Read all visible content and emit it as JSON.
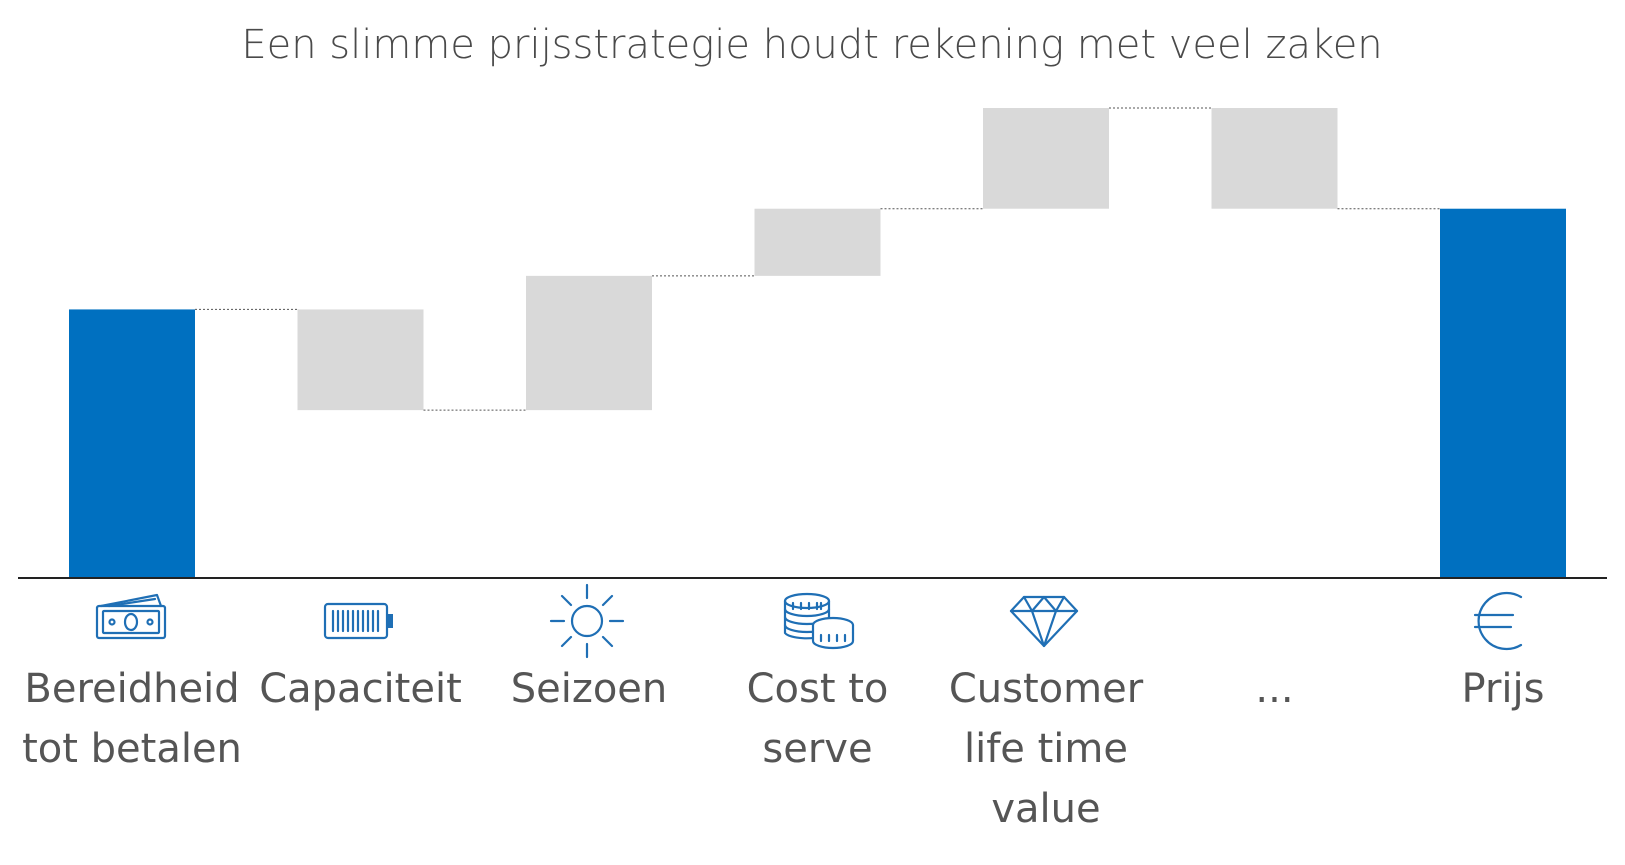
{
  "chart_data": {
    "type": "waterfall",
    "title": "Een slimme prijsstrategie houdt rekening met veel zaken",
    "categories": [
      [
        "Bereidheid",
        "tot betalen"
      ],
      [
        "Capaciteit"
      ],
      [
        "Seizoen"
      ],
      [
        "Cost to",
        "serve"
      ],
      [
        "Customer",
        "life time",
        "value"
      ],
      [
        "..."
      ],
      [
        "Prijs"
      ]
    ],
    "bars": [
      {
        "kind": "total",
        "from": 0,
        "to": 80
      },
      {
        "kind": "delta",
        "from": 80,
        "to": 50
      },
      {
        "kind": "delta",
        "from": 50,
        "to": 90
      },
      {
        "kind": "delta",
        "from": 90,
        "to": 110
      },
      {
        "kind": "delta",
        "from": 110,
        "to": 140
      },
      {
        "kind": "delta",
        "from": 140,
        "to": 110
      },
      {
        "kind": "total",
        "from": 0,
        "to": 110
      }
    ],
    "icons": [
      "banknote-icon",
      "battery-icon",
      "sun-icon",
      "coins-icon",
      "diamond-icon",
      "",
      "euro-icon"
    ],
    "ylim": [
      0,
      140
    ],
    "grid": false,
    "legend": "none",
    "colors": {
      "total": "#0070c0",
      "delta": "#d9d9d9"
    }
  }
}
